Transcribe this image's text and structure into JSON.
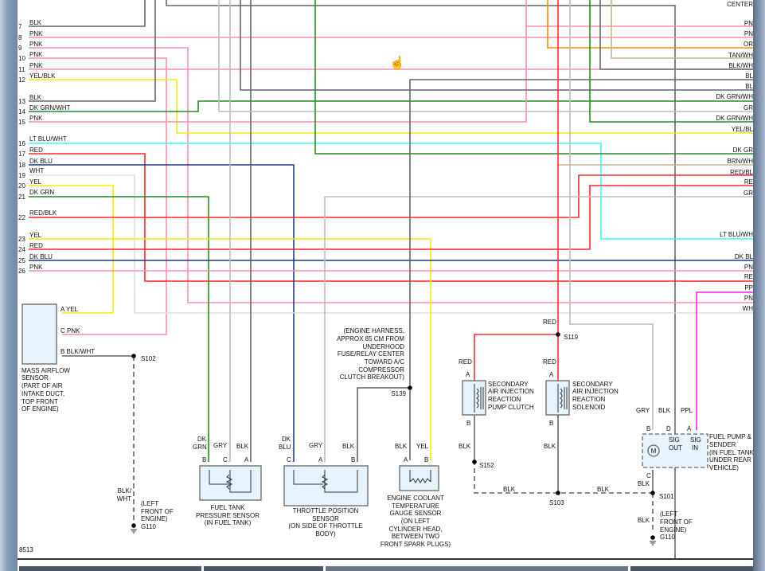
{
  "pin_numbers": [
    "7",
    "8",
    "9",
    "10",
    "11",
    "12",
    "13",
    "14",
    "15",
    "16",
    "17",
    "18",
    "19",
    "20",
    "21",
    "22",
    "23",
    "24",
    "25",
    "26"
  ],
  "left_wires": [
    "BLK",
    "PNK",
    "PNK",
    "PNK",
    "PNK",
    "YEL/BLK",
    "BLK",
    "DK GRN/WHT",
    "PNK",
    "LT BLU/WHT",
    "RED",
    "DK BLU",
    "WHT",
    "YEL",
    "DK GRN",
    "RED/BLK",
    "YEL",
    "RED",
    "DK BLU",
    "PNK"
  ],
  "right_wires": [
    "CENTER",
    "PN",
    "PN",
    "OR",
    "TAN/WH",
    "BLK/WH",
    "BL",
    "BL",
    "DK GRN/WH",
    "GR",
    "DK GRN/WH",
    "YEL/BL",
    "DK GR",
    "BRN/WH",
    "RED/BL",
    "RE",
    "GR",
    "LT BLU/WH",
    "DK BL",
    "PN",
    "RE",
    "PP",
    "PN",
    "WH"
  ],
  "maf": {
    "pins": [
      "A  YEL",
      "C  PNK",
      "B  BLK/WHT"
    ],
    "label": [
      "MASS AIRFLOW",
      "SENSOR",
      "(PART OF AIR",
      "INTAKE DUCT,",
      "TOP FRONT",
      "OF ENGINE)"
    ]
  },
  "s102": "S102",
  "g110_left": {
    "wire": [
      "BLK/",
      "WHT"
    ],
    "loc": [
      "(LEFT",
      "FRONT OF",
      "ENGINE)"
    ],
    "id": "G110"
  },
  "ftps": {
    "wires": [
      "DK",
      "GRN",
      "GRY",
      "BLK"
    ],
    "pins": [
      "B",
      "C",
      "A"
    ],
    "label": [
      "FUEL TANK",
      "PRESSURE SENSOR",
      "(IN FUEL TANK)"
    ]
  },
  "tps": {
    "wires": [
      "DK",
      "BLU",
      "GRY",
      "BLK"
    ],
    "pins": [
      "C",
      "A",
      "B"
    ],
    "label": [
      "THROTTLE POSITION",
      "SENSOR",
      "(ON SIDE OF THROTTLE",
      "BODY)"
    ]
  },
  "harness_note": [
    "(ENGINE HARNESS,",
    "APPROX 85 CM FROM",
    "UNDERHOOD",
    "FUSE/RELAY CENTER",
    "TOWARD A/C",
    "COMPRESSOR",
    "CLUTCH BREAKOUT)"
  ],
  "s139": "S139",
  "ect": {
    "wires": [
      "BLK",
      "YEL"
    ],
    "pins": [
      "A",
      "B"
    ],
    "label": [
      "ENGINE COOLANT",
      "TEMPERATURE",
      "GAUGE SENSOR",
      "(ON LEFT",
      "CYLINDER HEAD,",
      "BETWEEN TWO",
      "FRONT SPARK PLUGS)"
    ]
  },
  "s119": "S119",
  "red": "RED",
  "blk": "BLK",
  "air_clutch": {
    "pins": [
      "A",
      "B"
    ],
    "label": [
      "SECONDARY",
      "AIR INJECTION",
      "REACTION",
      "PUMP CLUTCH"
    ]
  },
  "air_solenoid": {
    "pins": [
      "A",
      "B"
    ],
    "label": [
      "SECONDARY",
      "AIR INJECTION",
      "REACTION",
      "SOLENOID"
    ]
  },
  "s152": "S152",
  "s103": "S103",
  "s101": "S101",
  "fuel_pump": {
    "wires": [
      "GRY",
      "BLK",
      "PPL"
    ],
    "pins": [
      "B",
      "D",
      "A",
      "C"
    ],
    "sig_out": [
      "SIG",
      "OUT"
    ],
    "sig_in": [
      "SIG",
      "IN"
    ],
    "motor": "M",
    "label": [
      "FUEL PUMP &",
      "SENDER",
      "(IN FUEL TANK",
      "UNDER REAR",
      "VEHICLE)"
    ]
  },
  "g110_right": {
    "wire": "BLK",
    "loc": [
      "(LEFT",
      "FRONT OF",
      "ENGINE)"
    ],
    "id": "G110"
  },
  "figure_number": "8513",
  "colors": {
    "PNK": "#ff8fa8",
    "RED": "#ff2a2a",
    "GRY": "#bdbdbd",
    "BLK": "#666666",
    "DK GRN": "#1f8f1f",
    "DK BLU": "#22388f",
    "YEL": "#f2ee00",
    "LT BLU": "#3ff7ff",
    "WHT": "#dddddd",
    "TAN": "#c6b68c",
    "ORG": "#ff8a00",
    "PPL": "#ff1ef0"
  }
}
